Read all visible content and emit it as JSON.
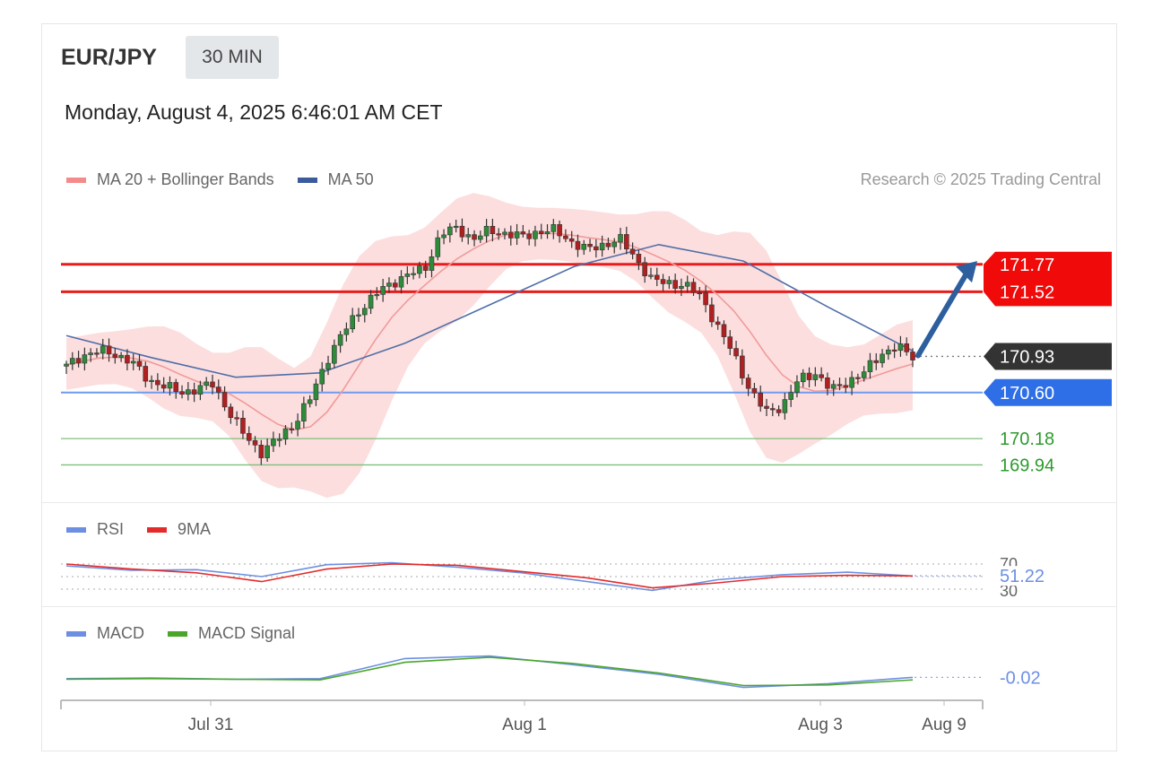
{
  "header": {
    "symbol": "EUR/JPY",
    "interval": "30 MIN",
    "datetime": "Monday, August 4, 2025 6:46:01 AM CET",
    "credit": "Research © 2025 Trading Central"
  },
  "legends": {
    "price": [
      {
        "label": "MA 20 + Bollinger Bands",
        "color": "#f58a8a"
      },
      {
        "label": "MA 50",
        "color": "#3b5b9a"
      }
    ],
    "rsi": [
      {
        "label": "RSI",
        "color": "#6d8fe3"
      },
      {
        "label": "9MA",
        "color": "#e32b2b"
      }
    ],
    "macd": [
      {
        "label": "MACD",
        "color": "#6d8fe3"
      },
      {
        "label": "MACD Signal",
        "color": "#4aa62a"
      }
    ]
  },
  "levels": [
    {
      "label": "171.77",
      "value": 171.77,
      "kind": "resistance",
      "color": "#e81c1c"
    },
    {
      "label": "171.52",
      "value": 171.52,
      "kind": "resistance",
      "color": "#e81c1c"
    },
    {
      "label": "170.93",
      "value": 170.93,
      "kind": "last",
      "color": "#333333"
    },
    {
      "label": "170.60",
      "value": 170.6,
      "kind": "pivot",
      "color": "#3a7ee8"
    },
    {
      "label": "170.18",
      "value": 170.18,
      "kind": "support",
      "color": "#2e9a2e"
    },
    {
      "label": "169.94",
      "value": 169.94,
      "kind": "support",
      "color": "#2e9a2e"
    }
  ],
  "rsi_panel": {
    "upper": "70",
    "lower": "30",
    "value": "51.22"
  },
  "macd_panel": {
    "value": "-0.02"
  },
  "x_axis": [
    "Jul 31",
    "Aug 1",
    "Aug 3",
    "Aug 9"
  ],
  "chart_data": {
    "type": "line",
    "title": "",
    "ylim": [
      169.6,
      172.3
    ],
    "price_series": [
      170.84,
      170.94,
      170.98,
      170.95,
      170.88,
      170.72,
      170.66,
      170.6,
      170.63,
      170.68,
      170.42,
      170.2,
      170.05,
      170.18,
      170.32,
      170.55,
      170.9,
      171.15,
      171.35,
      171.5,
      171.6,
      171.68,
      171.72,
      172.05,
      172.1,
      172.0,
      172.08,
      172.05,
      172.02,
      172.07,
      172.08,
      171.98,
      171.9,
      171.95,
      172.0,
      171.82,
      171.62,
      171.6,
      171.58,
      171.48,
      171.2,
      170.95,
      170.62,
      170.42,
      170.48,
      170.72,
      170.78,
      170.62,
      170.7,
      170.78,
      170.95,
      171.02,
      170.93
    ],
    "ma50_series": [
      171.12,
      170.92,
      170.74,
      170.78,
      171.05,
      171.4,
      171.75,
      171.95,
      171.8,
      171.38,
      170.98
    ],
    "rsi_series": [
      67,
      60,
      61,
      50,
      69,
      72,
      65,
      56,
      42,
      28,
      45,
      53,
      57,
      51
    ],
    "rsi_ma_series": [
      70,
      62,
      56,
      42,
      62,
      70,
      68,
      58,
      48,
      32,
      40,
      50,
      52,
      51
    ],
    "macd_series": [
      -0.04,
      -0.03,
      -0.05,
      -0.04,
      0.28,
      0.32,
      0.18,
      0.03,
      -0.18,
      -0.12,
      -0.02
    ],
    "macd_signal_series": [
      -0.05,
      -0.04,
      -0.05,
      -0.06,
      0.22,
      0.3,
      0.2,
      0.05,
      -0.15,
      -0.14,
      -0.06
    ]
  }
}
